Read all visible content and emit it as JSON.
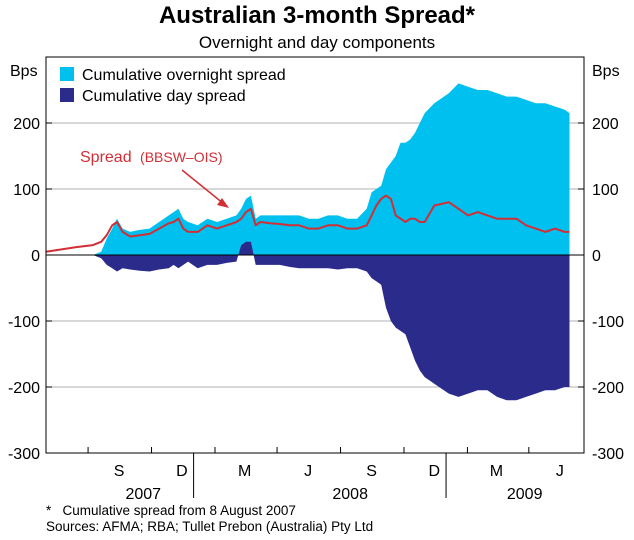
{
  "title": "Australian 3-month Spread*",
  "subtitle": "Overnight and day components",
  "footnote": "*   Cumulative spread from 8 August 2007",
  "sources": "Sources: AFMA; RBA; Tullet Prebon (Australia) Pty Ltd",
  "colors": {
    "overnight": "#00c0ef",
    "day": "#2b2b8c",
    "spread": "#d12f35",
    "grid": "#b0b0b0",
    "axis": "#000000"
  },
  "chart_data": {
    "type": "area",
    "title": "Australian 3-month Spread*",
    "subtitle": "Overnight and day components",
    "ylabel_left": "Bps",
    "ylabel_right": "Bps",
    "ylim": [
      -300,
      300
    ],
    "yticks": [
      -300,
      -200,
      -100,
      0,
      100,
      200
    ],
    "xlim": [
      "2007-06-01",
      "2009-07-20"
    ],
    "month_ticks": [
      "S",
      "D",
      "M",
      "J",
      "S",
      "D",
      "M",
      "J"
    ],
    "month_tick_dates": [
      "2007-09-15",
      "2007-12-15",
      "2008-03-15",
      "2008-06-15",
      "2008-09-15",
      "2008-12-15",
      "2009-03-15",
      "2009-06-15"
    ],
    "year_labels": [
      "2007",
      "2008",
      "2009"
    ],
    "year_label_dates": [
      "2007-10-20",
      "2008-08-15",
      "2009-04-25"
    ],
    "gridlines": true,
    "legend": {
      "entries": [
        "Cumulative overnight spread",
        "Cumulative day spread"
      ],
      "position": "top-left"
    },
    "annotation": {
      "text": "Spread",
      "text_suffix": "(BBSW–OIS)"
    },
    "x": [
      "2007-06-01",
      "2007-06-20",
      "2007-07-15",
      "2007-08-08",
      "2007-08-20",
      "2007-08-28",
      "2007-09-05",
      "2007-09-12",
      "2007-09-20",
      "2007-10-01",
      "2007-10-15",
      "2007-10-29",
      "2007-11-12",
      "2007-11-26",
      "2007-12-03",
      "2007-12-10",
      "2007-12-17",
      "2007-12-24",
      "2008-01-07",
      "2008-01-21",
      "2008-02-04",
      "2008-02-18",
      "2008-03-03",
      "2008-03-10",
      "2008-03-17",
      "2008-03-24",
      "2008-03-31",
      "2008-04-07",
      "2008-04-21",
      "2008-05-05",
      "2008-05-19",
      "2008-06-02",
      "2008-06-16",
      "2008-06-30",
      "2008-07-14",
      "2008-07-28",
      "2008-08-11",
      "2008-08-25",
      "2008-09-08",
      "2008-09-15",
      "2008-09-22",
      "2008-09-29",
      "2008-10-06",
      "2008-10-13",
      "2008-10-20",
      "2008-10-27",
      "2008-11-03",
      "2008-11-10",
      "2008-11-17",
      "2008-11-24",
      "2008-12-01",
      "2008-12-15",
      "2009-01-05",
      "2009-01-19",
      "2009-02-02",
      "2009-02-16",
      "2009-03-02",
      "2009-03-16",
      "2009-03-30",
      "2009-04-13",
      "2009-04-27",
      "2009-05-11",
      "2009-05-25",
      "2009-06-08",
      "2009-06-22",
      "2009-06-29"
    ],
    "series": [
      {
        "name": "Cumulative overnight spread",
        "values": [
          null,
          null,
          null,
          0,
          5,
          25,
          40,
          55,
          40,
          35,
          38,
          40,
          50,
          60,
          65,
          70,
          55,
          50,
          45,
          55,
          50,
          55,
          60,
          70,
          85,
          90,
          55,
          60,
          60,
          60,
          60,
          60,
          55,
          55,
          60,
          60,
          55,
          55,
          70,
          95,
          100,
          105,
          130,
          140,
          150,
          170,
          170,
          175,
          185,
          200,
          215,
          230,
          245,
          260,
          255,
          250,
          250,
          245,
          240,
          240,
          235,
          230,
          230,
          225,
          220,
          215
        ]
      },
      {
        "name": "Cumulative day spread",
        "values": [
          null,
          null,
          null,
          0,
          -5,
          -15,
          -20,
          -25,
          -20,
          -22,
          -24,
          -25,
          -22,
          -20,
          -15,
          -20,
          -15,
          -10,
          -20,
          -15,
          -15,
          -12,
          -10,
          15,
          20,
          20,
          -15,
          -15,
          -15,
          -15,
          -18,
          -20,
          -20,
          -20,
          -20,
          -22,
          -20,
          -20,
          -25,
          -35,
          -40,
          -45,
          -80,
          -100,
          -110,
          -115,
          -120,
          -140,
          -160,
          -175,
          -185,
          -195,
          -210,
          -215,
          -210,
          -205,
          -205,
          -215,
          -220,
          -220,
          -215,
          -210,
          -205,
          -205,
          -200,
          -200
        ]
      },
      {
        "name": "Spread",
        "values": [
          5,
          8,
          12,
          15,
          20,
          30,
          45,
          50,
          35,
          28,
          30,
          32,
          40,
          48,
          50,
          55,
          40,
          35,
          35,
          45,
          40,
          45,
          50,
          55,
          65,
          70,
          45,
          50,
          48,
          47,
          45,
          45,
          40,
          40,
          45,
          45,
          40,
          40,
          45,
          60,
          75,
          85,
          90,
          85,
          60,
          55,
          50,
          55,
          55,
          50,
          50,
          75,
          80,
          70,
          60,
          65,
          60,
          55,
          55,
          55,
          45,
          40,
          35,
          40,
          35,
          35
        ]
      }
    ]
  }
}
